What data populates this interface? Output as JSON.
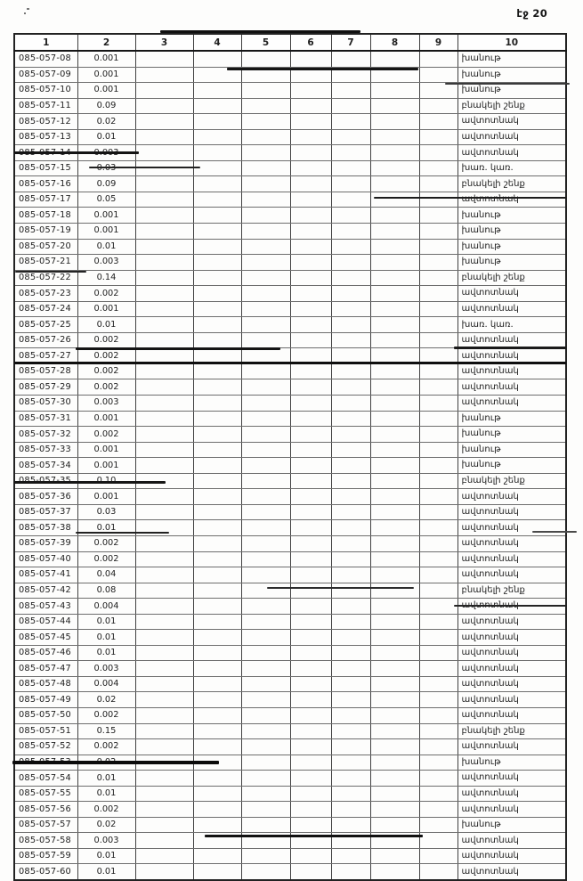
{
  "page": {
    "number_label": "էջ 20"
  },
  "table": {
    "columns": [
      "1",
      "2",
      "3",
      "4",
      "5",
      "6",
      "7",
      "8",
      "9",
      "10"
    ],
    "rows": [
      {
        "code": "085-057-08",
        "value": "0.001",
        "use": "խանութ"
      },
      {
        "code": "085-057-09",
        "value": "0.001",
        "use": "խանութ"
      },
      {
        "code": "085-057-10",
        "value": "0.001",
        "use": "խանութ"
      },
      {
        "code": "085-057-11",
        "value": "0.09",
        "use": "բնակելի շենք"
      },
      {
        "code": "085-057-12",
        "value": "0.02",
        "use": "ավտոտնակ"
      },
      {
        "code": "085-057-13",
        "value": "0.01",
        "use": "ավտոտնակ"
      },
      {
        "code": "085-057-14",
        "value": "0.003",
        "use": "ավտոտնակ"
      },
      {
        "code": "085-057-15",
        "value": "0.03",
        "use": "խառ. կառ."
      },
      {
        "code": "085-057-16",
        "value": "0.09",
        "use": "բնակելի շենք"
      },
      {
        "code": "085-057-17",
        "value": "0.05",
        "use": "ավտոտնակ"
      },
      {
        "code": "085-057-18",
        "value": "0.001",
        "use": "խանութ"
      },
      {
        "code": "085-057-19",
        "value": "0.001",
        "use": "խանութ"
      },
      {
        "code": "085-057-20",
        "value": "0.01",
        "use": "խանութ"
      },
      {
        "code": "085-057-21",
        "value": "0.003",
        "use": "խանութ"
      },
      {
        "code": "085-057-22",
        "value": "0.14",
        "use": "բնակելի շենք"
      },
      {
        "code": "085-057-23",
        "value": "0.002",
        "use": "ավտոտնակ"
      },
      {
        "code": "085-057-24",
        "value": "0.001",
        "use": "ավտոտնակ"
      },
      {
        "code": "085-057-25",
        "value": "0.01",
        "use": "խառ. կառ."
      },
      {
        "code": "085-057-26",
        "value": "0.002",
        "use": "ավտոտնակ"
      },
      {
        "code": "085-057-27",
        "value": "0.002",
        "use": "ավտոտնակ"
      },
      {
        "code": "085-057-28",
        "value": "0.002",
        "use": "ավտոտնակ"
      },
      {
        "code": "085-057-29",
        "value": "0.002",
        "use": "ավտոտնակ"
      },
      {
        "code": "085-057-30",
        "value": "0.003",
        "use": "ավտոտնակ"
      },
      {
        "code": "085-057-31",
        "value": "0.001",
        "use": "խանութ"
      },
      {
        "code": "085-057-32",
        "value": "0.002",
        "use": "խանութ"
      },
      {
        "code": "085-057-33",
        "value": "0.001",
        "use": "խանութ"
      },
      {
        "code": "085-057-34",
        "value": "0.001",
        "use": "խանութ"
      },
      {
        "code": "085-057-35",
        "value": "0.10",
        "use": "բնակելի շենք"
      },
      {
        "code": "085-057-36",
        "value": "0.001",
        "use": "ավտոտնակ"
      },
      {
        "code": "085-057-37",
        "value": "0.03",
        "use": "ավտոտնակ"
      },
      {
        "code": "085-057-38",
        "value": "0.01",
        "use": "ավտոտնակ"
      },
      {
        "code": "085-057-39",
        "value": "0.002",
        "use": "ավտոտնակ"
      },
      {
        "code": "085-057-40",
        "value": "0.002",
        "use": "ավտոտնակ"
      },
      {
        "code": "085-057-41",
        "value": "0.04",
        "use": "ավտոտնակ"
      },
      {
        "code": "085-057-42",
        "value": "0.08",
        "use": "բնակելի շենք"
      },
      {
        "code": "085-057-43",
        "value": "0.004",
        "use": "ավտոտնակ"
      },
      {
        "code": "085-057-44",
        "value": "0.01",
        "use": "ավտոտնակ"
      },
      {
        "code": "085-057-45",
        "value": "0.01",
        "use": "ավտոտնակ"
      },
      {
        "code": "085-057-46",
        "value": "0.01",
        "use": "ավտոտնակ"
      },
      {
        "code": "085-057-47",
        "value": "0.003",
        "use": "ավտոտնակ"
      },
      {
        "code": "085-057-48",
        "value": "0.004",
        "use": "ավտոտնակ"
      },
      {
        "code": "085-057-49",
        "value": "0.02",
        "use": "ավտոտնակ"
      },
      {
        "code": "085-057-50",
        "value": "0.002",
        "use": "ավտոտնակ"
      },
      {
        "code": "085-057-51",
        "value": "0.15",
        "use": "բնակելի շենք"
      },
      {
        "code": "085-057-52",
        "value": "0.002",
        "use": "ավտոտնակ"
      },
      {
        "code": "085-057-53",
        "value": "0.02",
        "use": "խանութ"
      },
      {
        "code": "085-057-54",
        "value": "0.01",
        "use": "ավտոտնակ"
      },
      {
        "code": "085-057-55",
        "value": "0.01",
        "use": "ավտոտնակ"
      },
      {
        "code": "085-057-56",
        "value": "0.002",
        "use": "ավտոտնակ"
      },
      {
        "code": "085-057-57",
        "value": "0.02",
        "use": "խանութ"
      },
      {
        "code": "085-057-58",
        "value": "0.003",
        "use": "ավտոտնակ"
      },
      {
        "code": "085-057-59",
        "value": "0.01",
        "use": "ավտոտնակ"
      },
      {
        "code": "085-057-60",
        "value": "0.01",
        "use": "ավտոտնակ"
      }
    ]
  }
}
